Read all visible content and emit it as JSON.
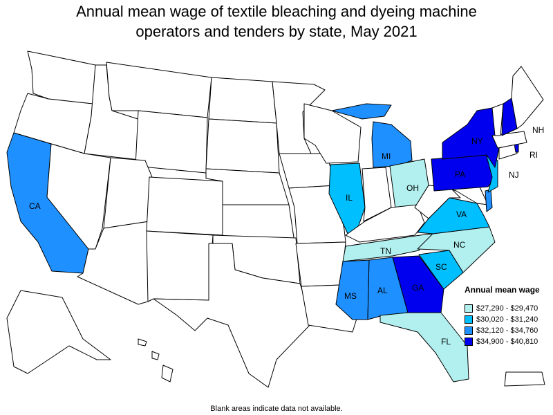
{
  "title_line1": "Annual mean wage of textile bleaching and dyeing machine",
  "title_line2": "operators and tenders by state, May 2021",
  "legend": {
    "title": "Annual mean wage",
    "bins": [
      {
        "label": "$27,290 - $29,470",
        "color": "#b2f0f0"
      },
      {
        "label": "$30,020 - $31,240",
        "color": "#00bfff"
      },
      {
        "label": "$32,120 - $34,760",
        "color": "#1e90ff"
      },
      {
        "label": "$34,900 - $40,810",
        "color": "#0000ee"
      }
    ]
  },
  "no_data_color": "#ffffff",
  "footnote": "Blank areas indicate data not available.",
  "chart_data": {
    "type": "choropleth",
    "states": [
      {
        "abbr": "CA",
        "bin": 2
      },
      {
        "abbr": "IL",
        "bin": 1
      },
      {
        "abbr": "MI",
        "bin": 2
      },
      {
        "abbr": "OH",
        "bin": 0
      },
      {
        "abbr": "NY",
        "bin": 3
      },
      {
        "abbr": "PA",
        "bin": 3
      },
      {
        "abbr": "NJ",
        "bin": 1
      },
      {
        "abbr": "VA",
        "bin": 1
      },
      {
        "abbr": "NC",
        "bin": 0
      },
      {
        "abbr": "SC",
        "bin": 1
      },
      {
        "abbr": "GA",
        "bin": 3
      },
      {
        "abbr": "AL",
        "bin": 2
      },
      {
        "abbr": "MS",
        "bin": 2
      },
      {
        "abbr": "TN",
        "bin": 0
      },
      {
        "abbr": "FL",
        "bin": 0
      },
      {
        "abbr": "NH",
        "bin": 3
      },
      {
        "abbr": "RI",
        "bin": 3
      },
      {
        "abbr": "DE",
        "bin": 2
      }
    ]
  }
}
